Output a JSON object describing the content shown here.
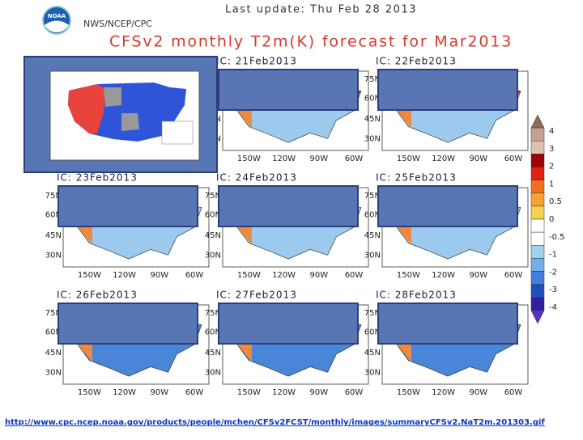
{
  "header": {
    "update": "Last update: Thu Feb 28 2013",
    "agency": "NWS/NCEP/CPC",
    "title": "CFSv2 monthly T2m(K) forecast for Mar2013",
    "logo": "NOAA"
  },
  "panels": [
    {
      "ic": "IC: 21Feb2013"
    },
    {
      "ic": "IC: 22Feb2013"
    },
    {
      "ic": "IC: 23Feb2013"
    },
    {
      "ic": "IC: 24Feb2013"
    },
    {
      "ic": "IC: 25Feb2013"
    },
    {
      "ic": "IC: 26Feb2013"
    },
    {
      "ic": "IC: 27Feb2013"
    },
    {
      "ic": "IC: 28Feb2013"
    }
  ],
  "axes": {
    "lat": [
      "75N",
      "60N",
      "45N",
      "30N"
    ],
    "lon": [
      "150W",
      "120W",
      "90W",
      "60W"
    ]
  },
  "colorbar": {
    "labels": [
      4,
      3,
      2,
      1,
      0.5,
      0,
      -0.5,
      -1,
      -2,
      -3,
      -4
    ]
  },
  "footer": {
    "url": "http://www.cpc.ncep.noaa.gov/products/people/mchen/CFSv2FCST/monthly/images/summaryCFSv2.NaT2m.201303.gif"
  }
}
